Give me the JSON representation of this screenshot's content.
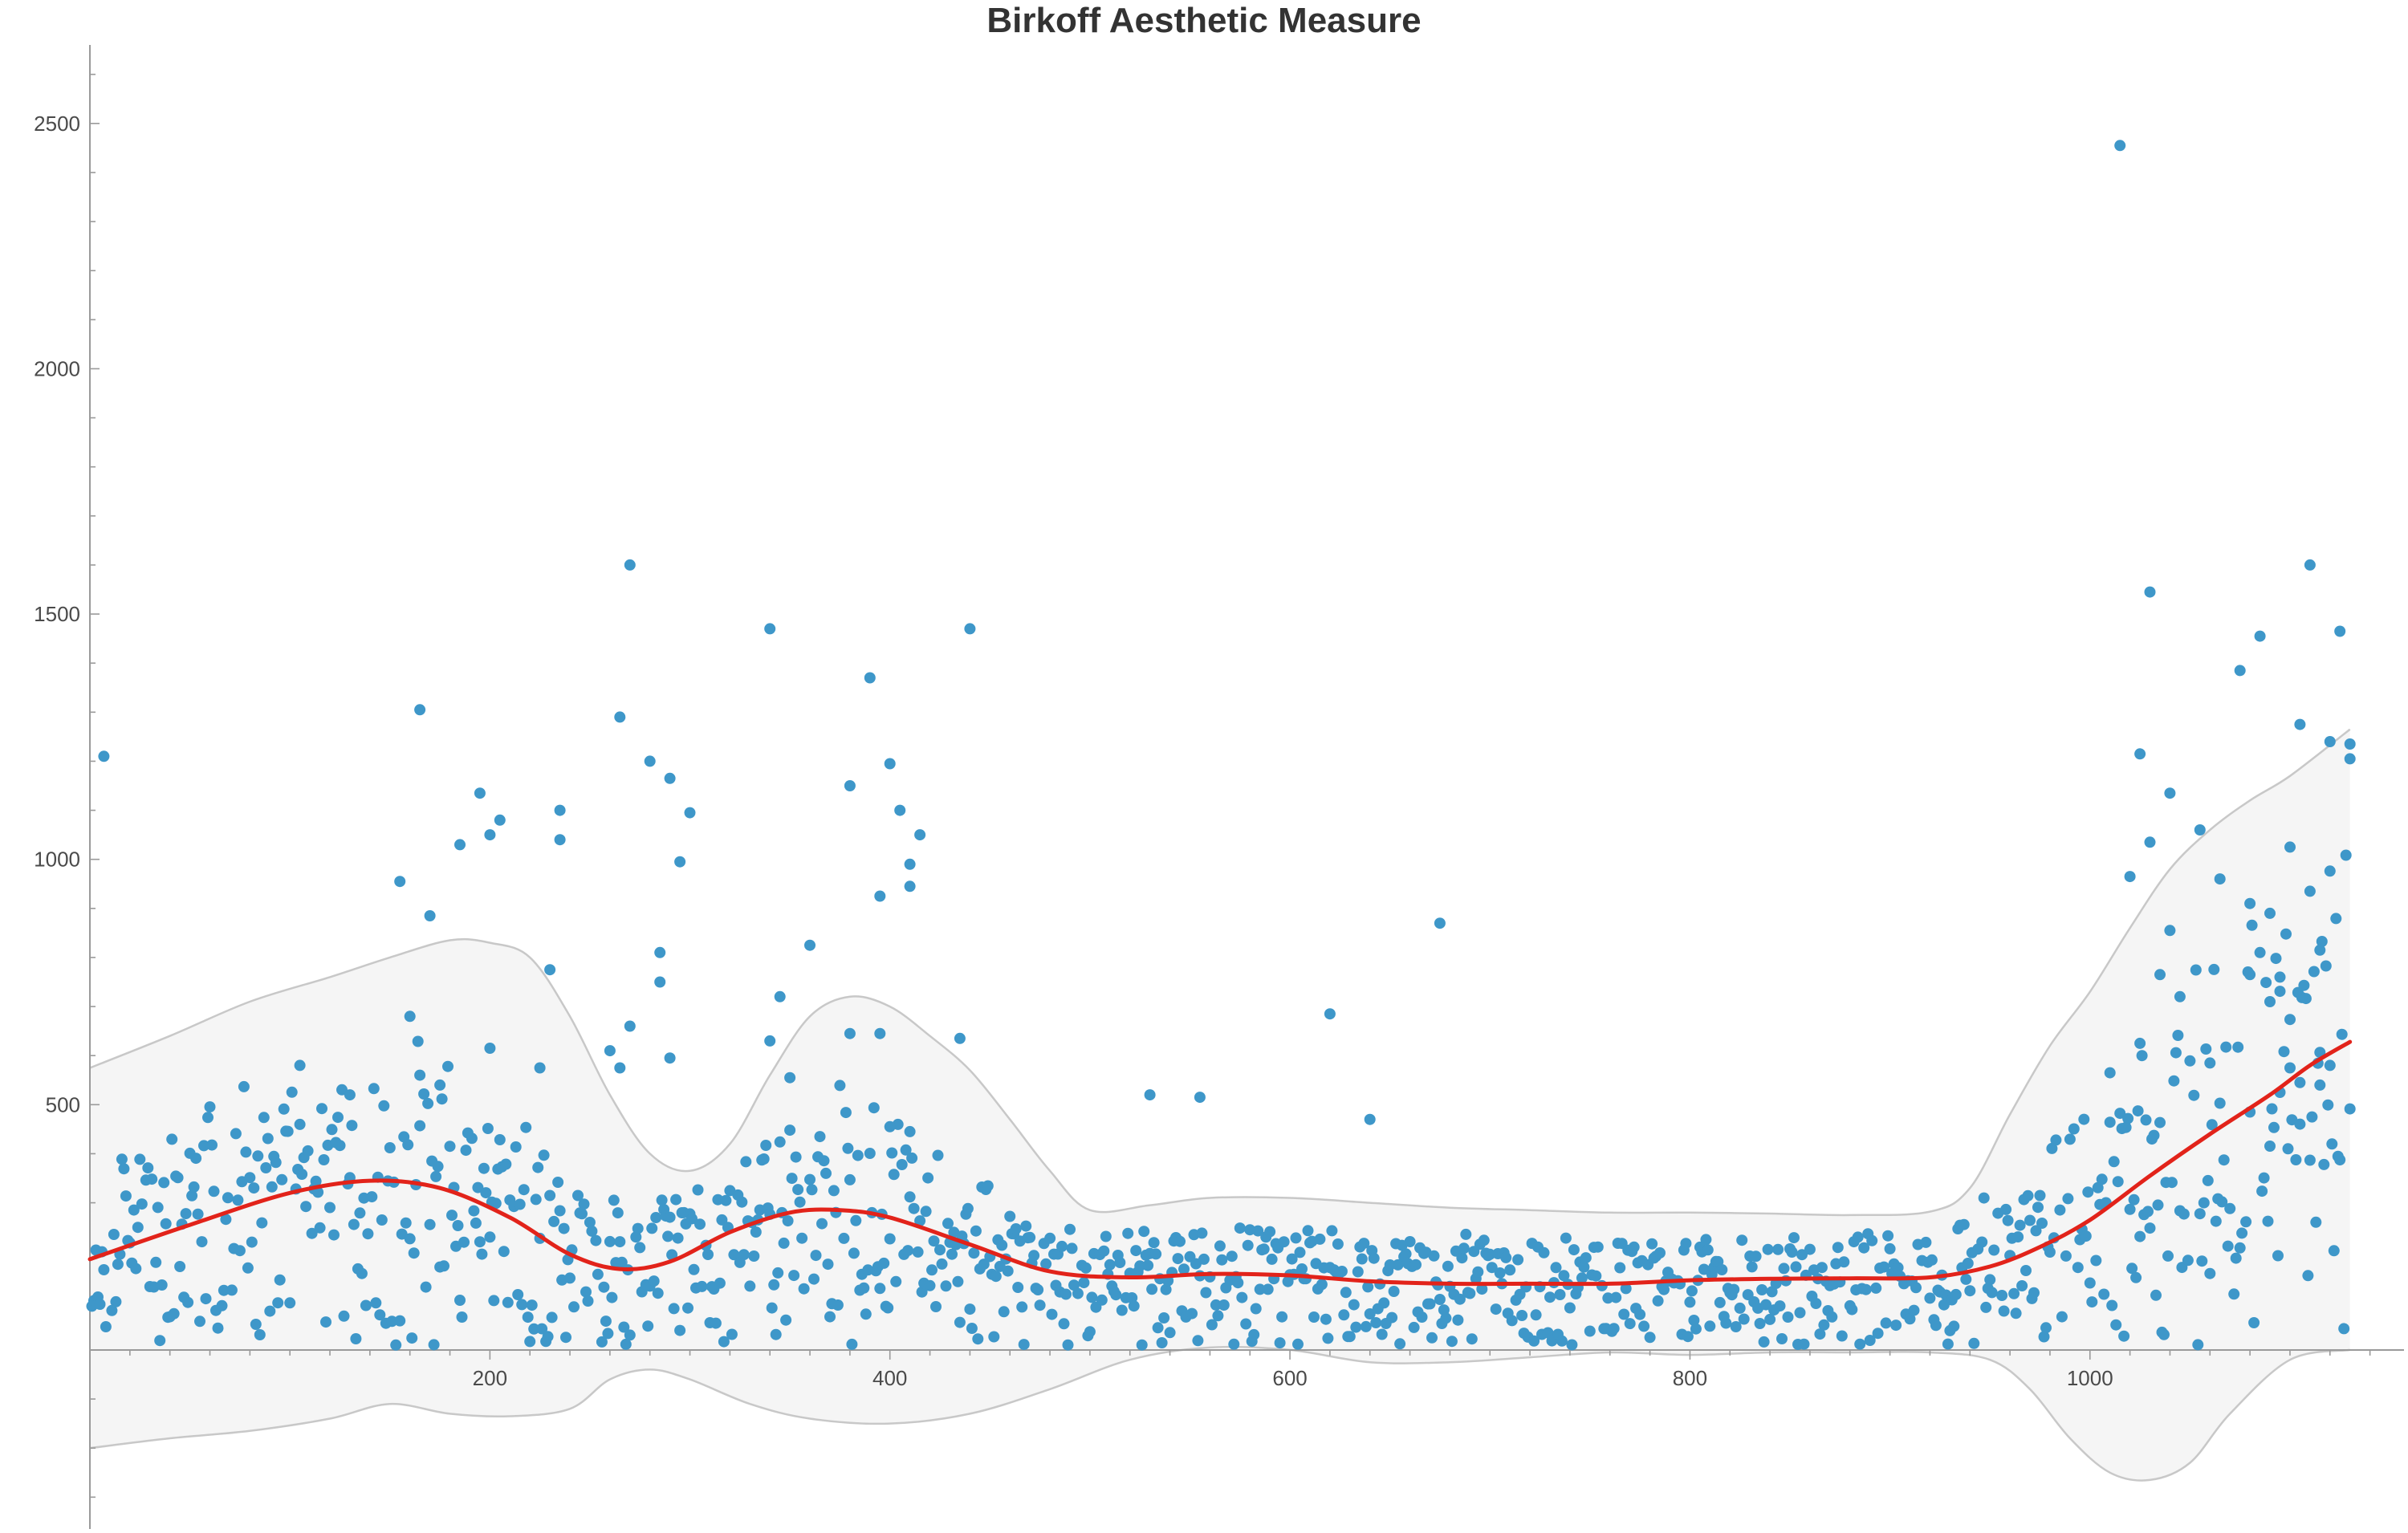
{
  "chart_data": {
    "type": "scatter",
    "title": "Birkoff Aesthetic Measure",
    "xlabel": "",
    "ylabel": "",
    "xlim": [
      0,
      1155
    ],
    "ylim": [
      -360,
      2660
    ],
    "x_ticks": [
      200,
      400,
      600,
      800,
      1000
    ],
    "y_ticks": [
      500,
      1000,
      1500,
      2000,
      2500
    ],
    "x_minor_step": 20,
    "y_minor_step": 100,
    "grid": false,
    "legend": "none",
    "colors": {
      "points": "#3e97c9",
      "trend": "#e2231a",
      "band_fill": "#f5f5f5",
      "band_stroke": "#c8c8c8",
      "axis": "#9a9a9a",
      "text": "#444444",
      "title": "#333333"
    },
    "outliers": [
      [
        7,
        1210
      ],
      [
        165,
        1305
      ],
      [
        170,
        885
      ],
      [
        155,
        955
      ],
      [
        195,
        1135
      ],
      [
        205,
        1080
      ],
      [
        185,
        1030
      ],
      [
        200,
        1050
      ],
      [
        235,
        1100
      ],
      [
        235,
        1040
      ],
      [
        230,
        775
      ],
      [
        160,
        680
      ],
      [
        175,
        540
      ],
      [
        165,
        560
      ],
      [
        105,
        580
      ],
      [
        130,
        520
      ],
      [
        200,
        615
      ],
      [
        225,
        575
      ],
      [
        270,
        1600
      ],
      [
        265,
        1290
      ],
      [
        280,
        1200
      ],
      [
        290,
        1165
      ],
      [
        295,
        995
      ],
      [
        300,
        1095
      ],
      [
        285,
        810
      ],
      [
        285,
        750
      ],
      [
        270,
        660
      ],
      [
        290,
        595
      ],
      [
        260,
        610
      ],
      [
        265,
        575
      ],
      [
        340,
        1470
      ],
      [
        345,
        720
      ],
      [
        350,
        555
      ],
      [
        340,
        630
      ],
      [
        360,
        825
      ],
      [
        380,
        1150
      ],
      [
        390,
        1370
      ],
      [
        400,
        1195
      ],
      [
        405,
        1100
      ],
      [
        395,
        925
      ],
      [
        410,
        990
      ],
      [
        410,
        945
      ],
      [
        415,
        1050
      ],
      [
        440,
        1470
      ],
      [
        435,
        635
      ],
      [
        380,
        645
      ],
      [
        395,
        645
      ],
      [
        400,
        455
      ],
      [
        410,
        445
      ],
      [
        620,
        685
      ],
      [
        675,
        870
      ],
      [
        530,
        520
      ],
      [
        555,
        515
      ],
      [
        640,
        470
      ],
      [
        1015,
        2455
      ],
      [
        1030,
        1545
      ],
      [
        1025,
        1215
      ],
      [
        1040,
        1135
      ],
      [
        1030,
        1035
      ],
      [
        1020,
        965
      ],
      [
        1040,
        855
      ],
      [
        1035,
        765
      ],
      [
        1045,
        720
      ],
      [
        1025,
        625
      ],
      [
        1010,
        565
      ],
      [
        1055,
        1060
      ],
      [
        1065,
        960
      ],
      [
        1075,
        1385
      ],
      [
        1085,
        1455
      ],
      [
        1080,
        910
      ],
      [
        1090,
        890
      ],
      [
        1095,
        760
      ],
      [
        1090,
        710
      ],
      [
        1100,
        1025
      ],
      [
        1105,
        1275
      ],
      [
        1110,
        1600
      ],
      [
        1110,
        935
      ],
      [
        1115,
        815
      ],
      [
        1125,
        1465
      ],
      [
        1120,
        1240
      ],
      [
        1130,
        1205
      ],
      [
        1130,
        1235
      ],
      [
        1100,
        575
      ],
      [
        1105,
        545
      ],
      [
        1095,
        525
      ],
      [
        1115,
        540
      ],
      [
        1120,
        580
      ],
      [
        1060,
        585
      ],
      [
        1080,
        485
      ]
    ],
    "trend_line": [
      [
        0,
        185
      ],
      [
        50,
        255
      ],
      [
        100,
        320
      ],
      [
        140,
        345
      ],
      [
        175,
        330
      ],
      [
        210,
        270
      ],
      [
        240,
        195
      ],
      [
        265,
        165
      ],
      [
        290,
        180
      ],
      [
        320,
        240
      ],
      [
        350,
        280
      ],
      [
        375,
        285
      ],
      [
        400,
        270
      ],
      [
        440,
        215
      ],
      [
        480,
        160
      ],
      [
        520,
        148
      ],
      [
        560,
        155
      ],
      [
        600,
        152
      ],
      [
        640,
        140
      ],
      [
        680,
        135
      ],
      [
        720,
        135
      ],
      [
        760,
        135
      ],
      [
        800,
        142
      ],
      [
        840,
        145
      ],
      [
        880,
        146
      ],
      [
        920,
        148
      ],
      [
        950,
        170
      ],
      [
        975,
        210
      ],
      [
        1000,
        265
      ],
      [
        1030,
        355
      ],
      [
        1060,
        440
      ],
      [
        1090,
        520
      ],
      [
        1110,
        580
      ],
      [
        1130,
        628
      ]
    ],
    "band_upper": [
      [
        0,
        575
      ],
      [
        40,
        640
      ],
      [
        80,
        710
      ],
      [
        120,
        760
      ],
      [
        150,
        800
      ],
      [
        180,
        835
      ],
      [
        200,
        830
      ],
      [
        220,
        800
      ],
      [
        240,
        680
      ],
      [
        260,
        520
      ],
      [
        280,
        400
      ],
      [
        300,
        365
      ],
      [
        320,
        420
      ],
      [
        340,
        560
      ],
      [
        360,
        680
      ],
      [
        380,
        720
      ],
      [
        400,
        700
      ],
      [
        420,
        640
      ],
      [
        440,
        570
      ],
      [
        460,
        470
      ],
      [
        480,
        365
      ],
      [
        500,
        285
      ],
      [
        530,
        295
      ],
      [
        560,
        310
      ],
      [
        600,
        310
      ],
      [
        640,
        300
      ],
      [
        680,
        290
      ],
      [
        720,
        285
      ],
      [
        760,
        280
      ],
      [
        800,
        280
      ],
      [
        840,
        278
      ],
      [
        880,
        275
      ],
      [
        920,
        282
      ],
      [
        940,
        330
      ],
      [
        960,
        480
      ],
      [
        980,
        620
      ],
      [
        1000,
        730
      ],
      [
        1020,
        860
      ],
      [
        1040,
        980
      ],
      [
        1060,
        1060
      ],
      [
        1080,
        1120
      ],
      [
        1100,
        1170
      ],
      [
        1130,
        1265
      ]
    ],
    "band_lower": [
      [
        0,
        -200
      ],
      [
        40,
        -180
      ],
      [
        80,
        -165
      ],
      [
        120,
        -140
      ],
      [
        150,
        -110
      ],
      [
        180,
        -130
      ],
      [
        210,
        -135
      ],
      [
        240,
        -120
      ],
      [
        260,
        -60
      ],
      [
        280,
        -40
      ],
      [
        300,
        -60
      ],
      [
        330,
        -110
      ],
      [
        360,
        -140
      ],
      [
        400,
        -150
      ],
      [
        440,
        -130
      ],
      [
        480,
        -80
      ],
      [
        520,
        -20
      ],
      [
        560,
        5
      ],
      [
        600,
        0
      ],
      [
        640,
        -25
      ],
      [
        680,
        -25
      ],
      [
        720,
        -15
      ],
      [
        760,
        -5
      ],
      [
        800,
        -10
      ],
      [
        840,
        -5
      ],
      [
        880,
        -5
      ],
      [
        920,
        -5
      ],
      [
        950,
        -20
      ],
      [
        970,
        -80
      ],
      [
        990,
        -180
      ],
      [
        1010,
        -250
      ],
      [
        1030,
        -265
      ],
      [
        1050,
        -230
      ],
      [
        1070,
        -130
      ],
      [
        1100,
        -20
      ],
      [
        1130,
        0
      ]
    ]
  }
}
